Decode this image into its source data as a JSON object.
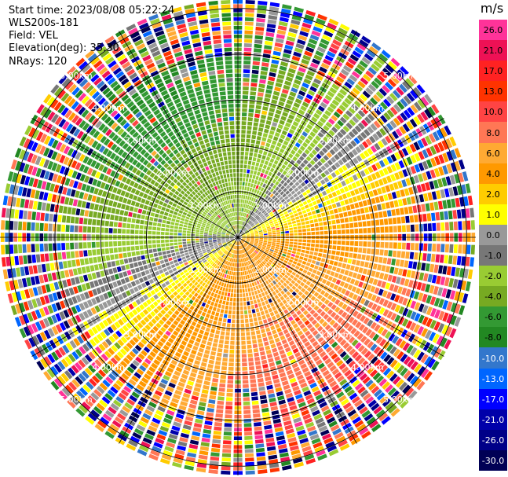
{
  "info": {
    "start_time": "Start time: 2023/08/08 05:22:24",
    "instrument": "WLS200s-181",
    "field": "Field: VEL",
    "elevation": "Elevation(deg): 35.30",
    "nrays": "NRays: 120"
  },
  "colorbar": {
    "unit": "m/s",
    "labels": [
      "26.0",
      "21.0",
      "17.0",
      "13.0",
      "10.0",
      "8.0",
      "6.0",
      "4.0",
      "2.0",
      "1.0",
      "0.0",
      "-1.0",
      "-2.0",
      "-4.0",
      "-6.0",
      "-8.0",
      "-10.0",
      "-13.0",
      "-17.0",
      "-21.0",
      "-26.0",
      "-30.0"
    ],
    "colors": [
      "#ff3399",
      "#ee1155",
      "#ff2222",
      "#ff3300",
      "#ff4444",
      "#ff7755",
      "#ffaa33",
      "#ff9900",
      "#ffcc00",
      "#ffff00",
      "#999999",
      "#777777",
      "#99cc33",
      "#77aa22",
      "#339933",
      "#228822",
      "#3377cc",
      "#0066ff",
      "#0000ff",
      "#0000aa",
      "#000088",
      "#000055"
    ]
  },
  "chart_data": {
    "type": "ppi",
    "field": "VEL",
    "nrays": 120,
    "elevation_deg": 35.3,
    "range_rings_km": [
      1.0,
      2.0,
      3.0,
      4.0,
      5.0
    ],
    "range_labels": [
      "1.00km",
      "2.00km",
      "3.00km",
      "4.00km",
      "5.00km"
    ],
    "max_range_km": 5.2,
    "azimuth_spokes_deg": [
      0,
      30,
      60,
      90,
      120,
      150,
      180,
      210,
      240,
      270,
      300,
      330
    ],
    "unit": "m/s",
    "scale_min": -30.0,
    "scale_max": 26.0,
    "grid": true
  }
}
